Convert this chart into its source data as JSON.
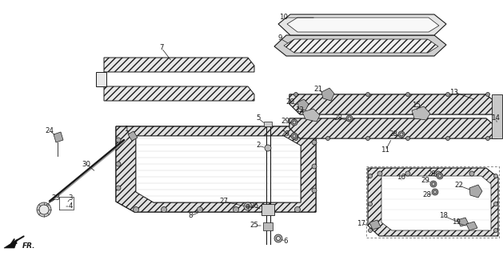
{
  "bg": "#ffffff",
  "lc": "#1a1a1a",
  "hatch_color": "#888888",
  "figsize": [
    6.29,
    3.2
  ],
  "dpi": 100
}
